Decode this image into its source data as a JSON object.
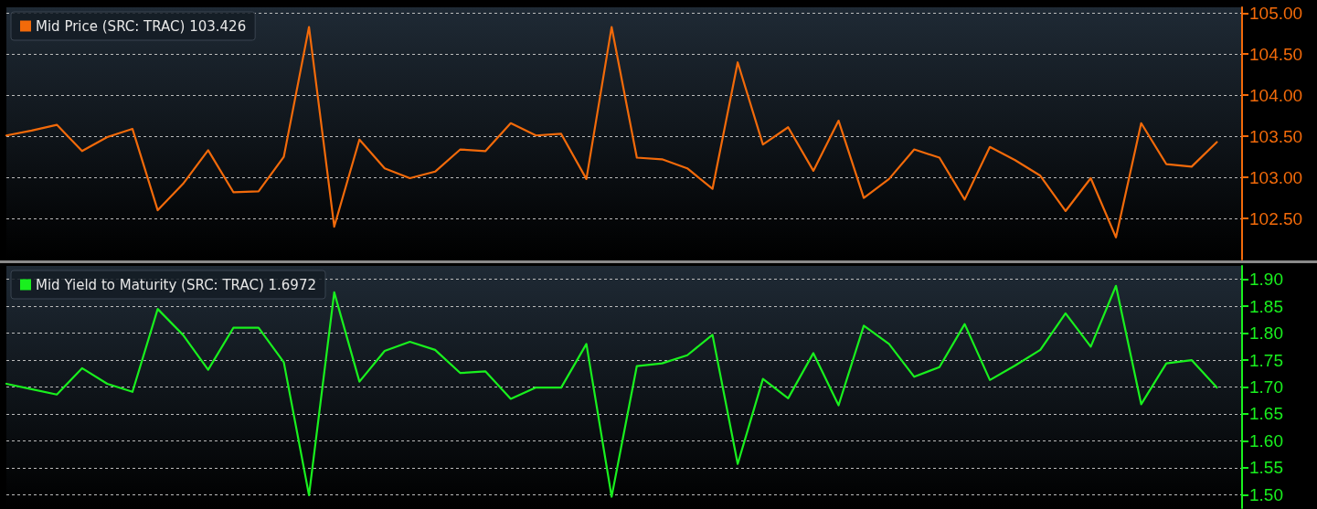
{
  "chart_data": [
    {
      "type": "line",
      "categories": [
        null,
        null,
        null,
        null,
        null,
        null,
        null,
        null,
        null,
        null,
        null,
        null,
        null,
        null,
        null,
        null,
        null,
        null,
        null,
        null,
        null,
        null,
        null,
        null,
        null,
        null,
        null,
        null,
        null,
        null,
        null,
        null,
        null,
        null,
        null,
        null,
        null,
        null,
        null,
        null,
        null,
        null,
        null,
        null,
        null,
        null,
        null,
        null,
        null,
        null
      ],
      "series": [
        {
          "name": "Mid Price (SRC: TRAC) 103.426",
          "color": "#f26a0a",
          "values": [
            103.51,
            103.57,
            103.64,
            103.32,
            103.49,
            103.59,
            102.6,
            102.92,
            103.33,
            102.82,
            102.83,
            103.25,
            104.83,
            102.4,
            103.46,
            103.11,
            102.99,
            103.07,
            103.34,
            103.32,
            103.66,
            103.51,
            103.53,
            102.98,
            104.83,
            103.24,
            103.22,
            103.11,
            102.86,
            104.4,
            103.4,
            103.61,
            103.08,
            103.69,
            102.75,
            102.98,
            103.34,
            103.24,
            102.73,
            103.37,
            103.21,
            103.02,
            102.59,
            102.99,
            102.27,
            103.66,
            103.16,
            103.13,
            103.43,
            null
          ]
        }
      ],
      "ylim": [
        102,
        105.07
      ],
      "yticks": [
        {
          "value": 102.5,
          "label": "102.50"
        },
        {
          "value": 103,
          "label": "103.00"
        },
        {
          "value": 103.5,
          "label": "103.50"
        },
        {
          "value": 104,
          "label": "104.00"
        },
        {
          "value": 104.5,
          "label": "104.50"
        },
        {
          "value": 105,
          "label": "105.00"
        }
      ],
      "grid": "y",
      "legend": "top left",
      "tick_labels": "y",
      "marker": "none",
      "line_style": "solid"
    },
    {
      "type": "line",
      "categories": [
        null,
        null,
        null,
        null,
        null,
        null,
        null,
        null,
        null,
        null,
        null,
        null,
        null,
        null,
        null,
        null,
        null,
        null,
        null,
        null,
        null,
        null,
        null,
        null,
        null,
        null,
        null,
        null,
        null,
        null,
        null,
        null,
        null,
        null,
        null,
        null,
        null,
        null,
        null,
        null,
        null,
        null,
        null,
        null,
        null,
        null,
        null,
        null,
        null,
        null
      ],
      "series": [
        {
          "name": "Mid Yield to Maturity (SRC: TRAC) 1.6972",
          "color": "#19f01e",
          "values": [
            1.706,
            1.696,
            1.686,
            1.735,
            1.706,
            1.691,
            1.845,
            1.797,
            1.732,
            1.81,
            1.81,
            1.746,
            1.499,
            1.876,
            1.71,
            1.767,
            1.784,
            1.769,
            1.726,
            1.729,
            1.678,
            1.699,
            1.699,
            1.78,
            1.496,
            1.739,
            1.744,
            1.759,
            1.797,
            1.557,
            1.715,
            1.679,
            1.763,
            1.666,
            1.814,
            1.78,
            1.719,
            1.737,
            1.817,
            1.713,
            1.74,
            1.769,
            1.837,
            1.775,
            1.888,
            1.668,
            1.744,
            1.75,
            1.699,
            null
          ]
        }
      ],
      "ylim": [
        1.475,
        1.925
      ],
      "yticks": [
        {
          "value": 1.5,
          "label": "1.50"
        },
        {
          "value": 1.55,
          "label": "1.55"
        },
        {
          "value": 1.6,
          "label": "1.60"
        },
        {
          "value": 1.65,
          "label": "1.65"
        },
        {
          "value": 1.7,
          "label": "1.70"
        },
        {
          "value": 1.75,
          "label": "1.75"
        },
        {
          "value": 1.8,
          "label": "1.80"
        },
        {
          "value": 1.85,
          "label": "1.85"
        },
        {
          "value": 1.9,
          "label": "1.90"
        }
      ],
      "grid": "y",
      "legend": "top left",
      "tick_labels": "y",
      "marker": "none",
      "line_style": "solid"
    }
  ]
}
